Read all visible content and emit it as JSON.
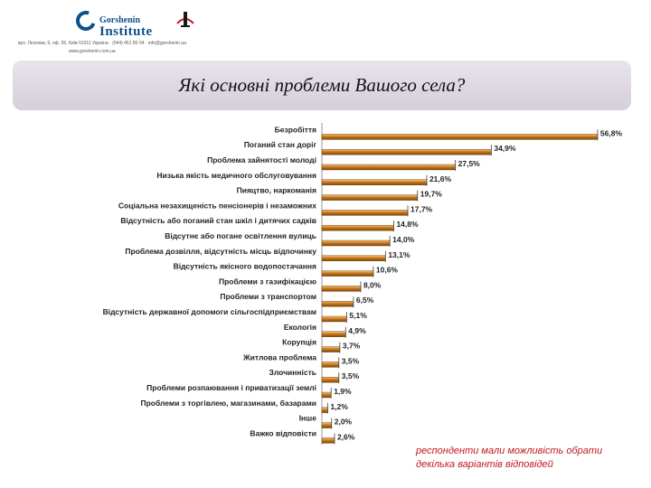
{
  "header": {
    "logo_line1": "Gorshenin",
    "logo_line2": "Institute",
    "address_line1": "вул. Лескова, 9, оф. 55, Київ 01011 Україна · (044) 451 80 04 · info@gorshenin.ua",
    "address_line2": "www.gorshenin.com.ua"
  },
  "title": "Які основні проблеми Вашого села?",
  "note": "респонденти мали можливість обрати декілька варіантів відповідей",
  "colors": {
    "bar_top": "#f6c27a",
    "bar_mid": "#c97a1f",
    "bar_bottom": "#7a4606",
    "title_bg": "#ddd6e0",
    "note": "#c4161c"
  },
  "chart_data": {
    "type": "bar",
    "orientation": "horizontal",
    "categories": [
      "Безробіття",
      "Поганий стан доріг",
      "Проблема зайнятості молоді",
      "Низька якість медичного обслуговування",
      "Пияцтво, наркоманія",
      "Соціальна незахищеність пенсіонерів і незаможних",
      "Відсутність або поганий стан шкіл і дитячих садків",
      "Відсутнє або погане освітлення вулиць",
      "Проблема дозвілля, відсутність місць відпочинку",
      "Відсутність якісного водопостачання",
      "Проблеми з газифікацією",
      "Проблеми з транспортом",
      "Відсутність державної допомоги сільгоспідприємствам",
      "Екологія",
      "Корупція",
      "Житлова проблема",
      "Злочинність",
      "Проблеми розпаювання і приватизації землі",
      "Проблеми з торгівлею, магазинами, базарами",
      "Інше",
      "Важко відповісти"
    ],
    "values": [
      56.8,
      34.9,
      27.5,
      21.6,
      19.7,
      17.7,
      14.8,
      14.0,
      13.1,
      10.6,
      8.0,
      6.5,
      5.1,
      4.9,
      3.7,
      3.5,
      3.5,
      1.9,
      1.2,
      2.0,
      2.6
    ],
    "value_labels": [
      "56,8%",
      "34,9%",
      "27,5%",
      "21,6%",
      "19,7%",
      "17,7%",
      "14,8%",
      "14,0%",
      "13,1%",
      "10,6%",
      "8,0%",
      "6,5%",
      "5,1%",
      "4,9%",
      "3,7%",
      "3,5%",
      "3,5%",
      "1,9%",
      "1,2%",
      "2,0%",
      "2,6%"
    ],
    "xlim": [
      0,
      57
    ]
  }
}
